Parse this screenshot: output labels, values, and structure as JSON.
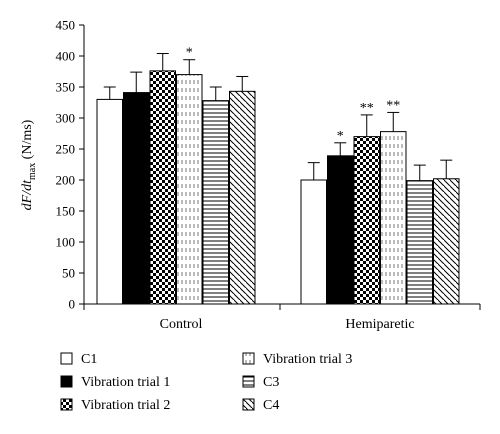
{
  "chart_data": {
    "type": "bar",
    "ylabel": {
      "main": "dF/dt",
      "sub": "max",
      "unit": " (N/ms)"
    },
    "ylim": [
      0,
      450
    ],
    "yticks": [
      0,
      50,
      100,
      150,
      200,
      250,
      300,
      350,
      400,
      450
    ],
    "categories": [
      "Control",
      "Hemiparetic"
    ],
    "series": [
      {
        "name": "C1",
        "pattern": "white",
        "values": [
          330,
          200
        ],
        "errors": [
          20,
          28
        ],
        "annotations": [
          "",
          ""
        ]
      },
      {
        "name": "Vibration trial 1",
        "pattern": "black",
        "values": [
          341,
          239
        ],
        "errors": [
          33,
          21
        ],
        "annotations": [
          "",
          "*"
        ]
      },
      {
        "name": "Vibration trial 2",
        "pattern": "checker",
        "values": [
          376,
          270
        ],
        "errors": [
          28,
          35
        ],
        "annotations": [
          "",
          "**"
        ]
      },
      {
        "name": "Vibration trial 3",
        "pattern": "dashed-vertical",
        "values": [
          370,
          278
        ],
        "errors": [
          24,
          31
        ],
        "annotations": [
          "*",
          "**"
        ]
      },
      {
        "name": "C3",
        "pattern": "horizontal",
        "values": [
          328,
          199
        ],
        "errors": [
          22,
          25
        ],
        "annotations": [
          "",
          ""
        ]
      },
      {
        "name": "C4",
        "pattern": "diagonal",
        "values": [
          343,
          202
        ],
        "errors": [
          24,
          30
        ],
        "annotations": [
          "",
          ""
        ]
      }
    ],
    "legend": {
      "placement": "bottom",
      "columns": 2
    },
    "grid": false
  }
}
